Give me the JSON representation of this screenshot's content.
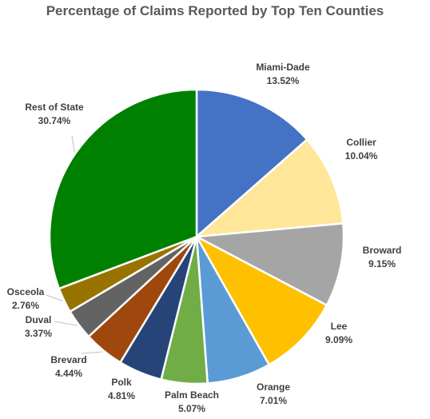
{
  "chart_data": {
    "type": "pie",
    "title": "Percentage of Claims Reported by Top Ten Counties",
    "slices": [
      {
        "name": "Miami-Dade",
        "value": 13.52,
        "label": "13.52%",
        "color": "#4472C4"
      },
      {
        "name": "Collier",
        "value": 10.04,
        "label": "10.04%",
        "color": "#FFE699"
      },
      {
        "name": "Broward",
        "value": 9.15,
        "label": "9.15%",
        "color": "#A5A5A5"
      },
      {
        "name": "Lee",
        "value": 9.09,
        "label": "9.09%",
        "color": "#FFC000"
      },
      {
        "name": "Orange",
        "value": 7.01,
        "label": "7.01%",
        "color": "#5B9BD5"
      },
      {
        "name": "Palm Beach",
        "value": 5.07,
        "label": "5.07%",
        "color": "#70AD47"
      },
      {
        "name": "Polk",
        "value": 4.81,
        "label": "4.81%",
        "color": "#264478"
      },
      {
        "name": "Brevard",
        "value": 4.44,
        "label": "4.44%",
        "color": "#9E480E"
      },
      {
        "name": "Duval",
        "value": 3.37,
        "label": "3.37%",
        "color": "#636363"
      },
      {
        "name": "Osceola",
        "value": 2.76,
        "label": "2.76%",
        "color": "#997300"
      },
      {
        "name": "Rest of State",
        "value": 30.74,
        "label": "30.74%",
        "color": "#008000"
      }
    ],
    "legend": "none",
    "start_angle": "12 o'clock",
    "direction": "clockwise"
  }
}
